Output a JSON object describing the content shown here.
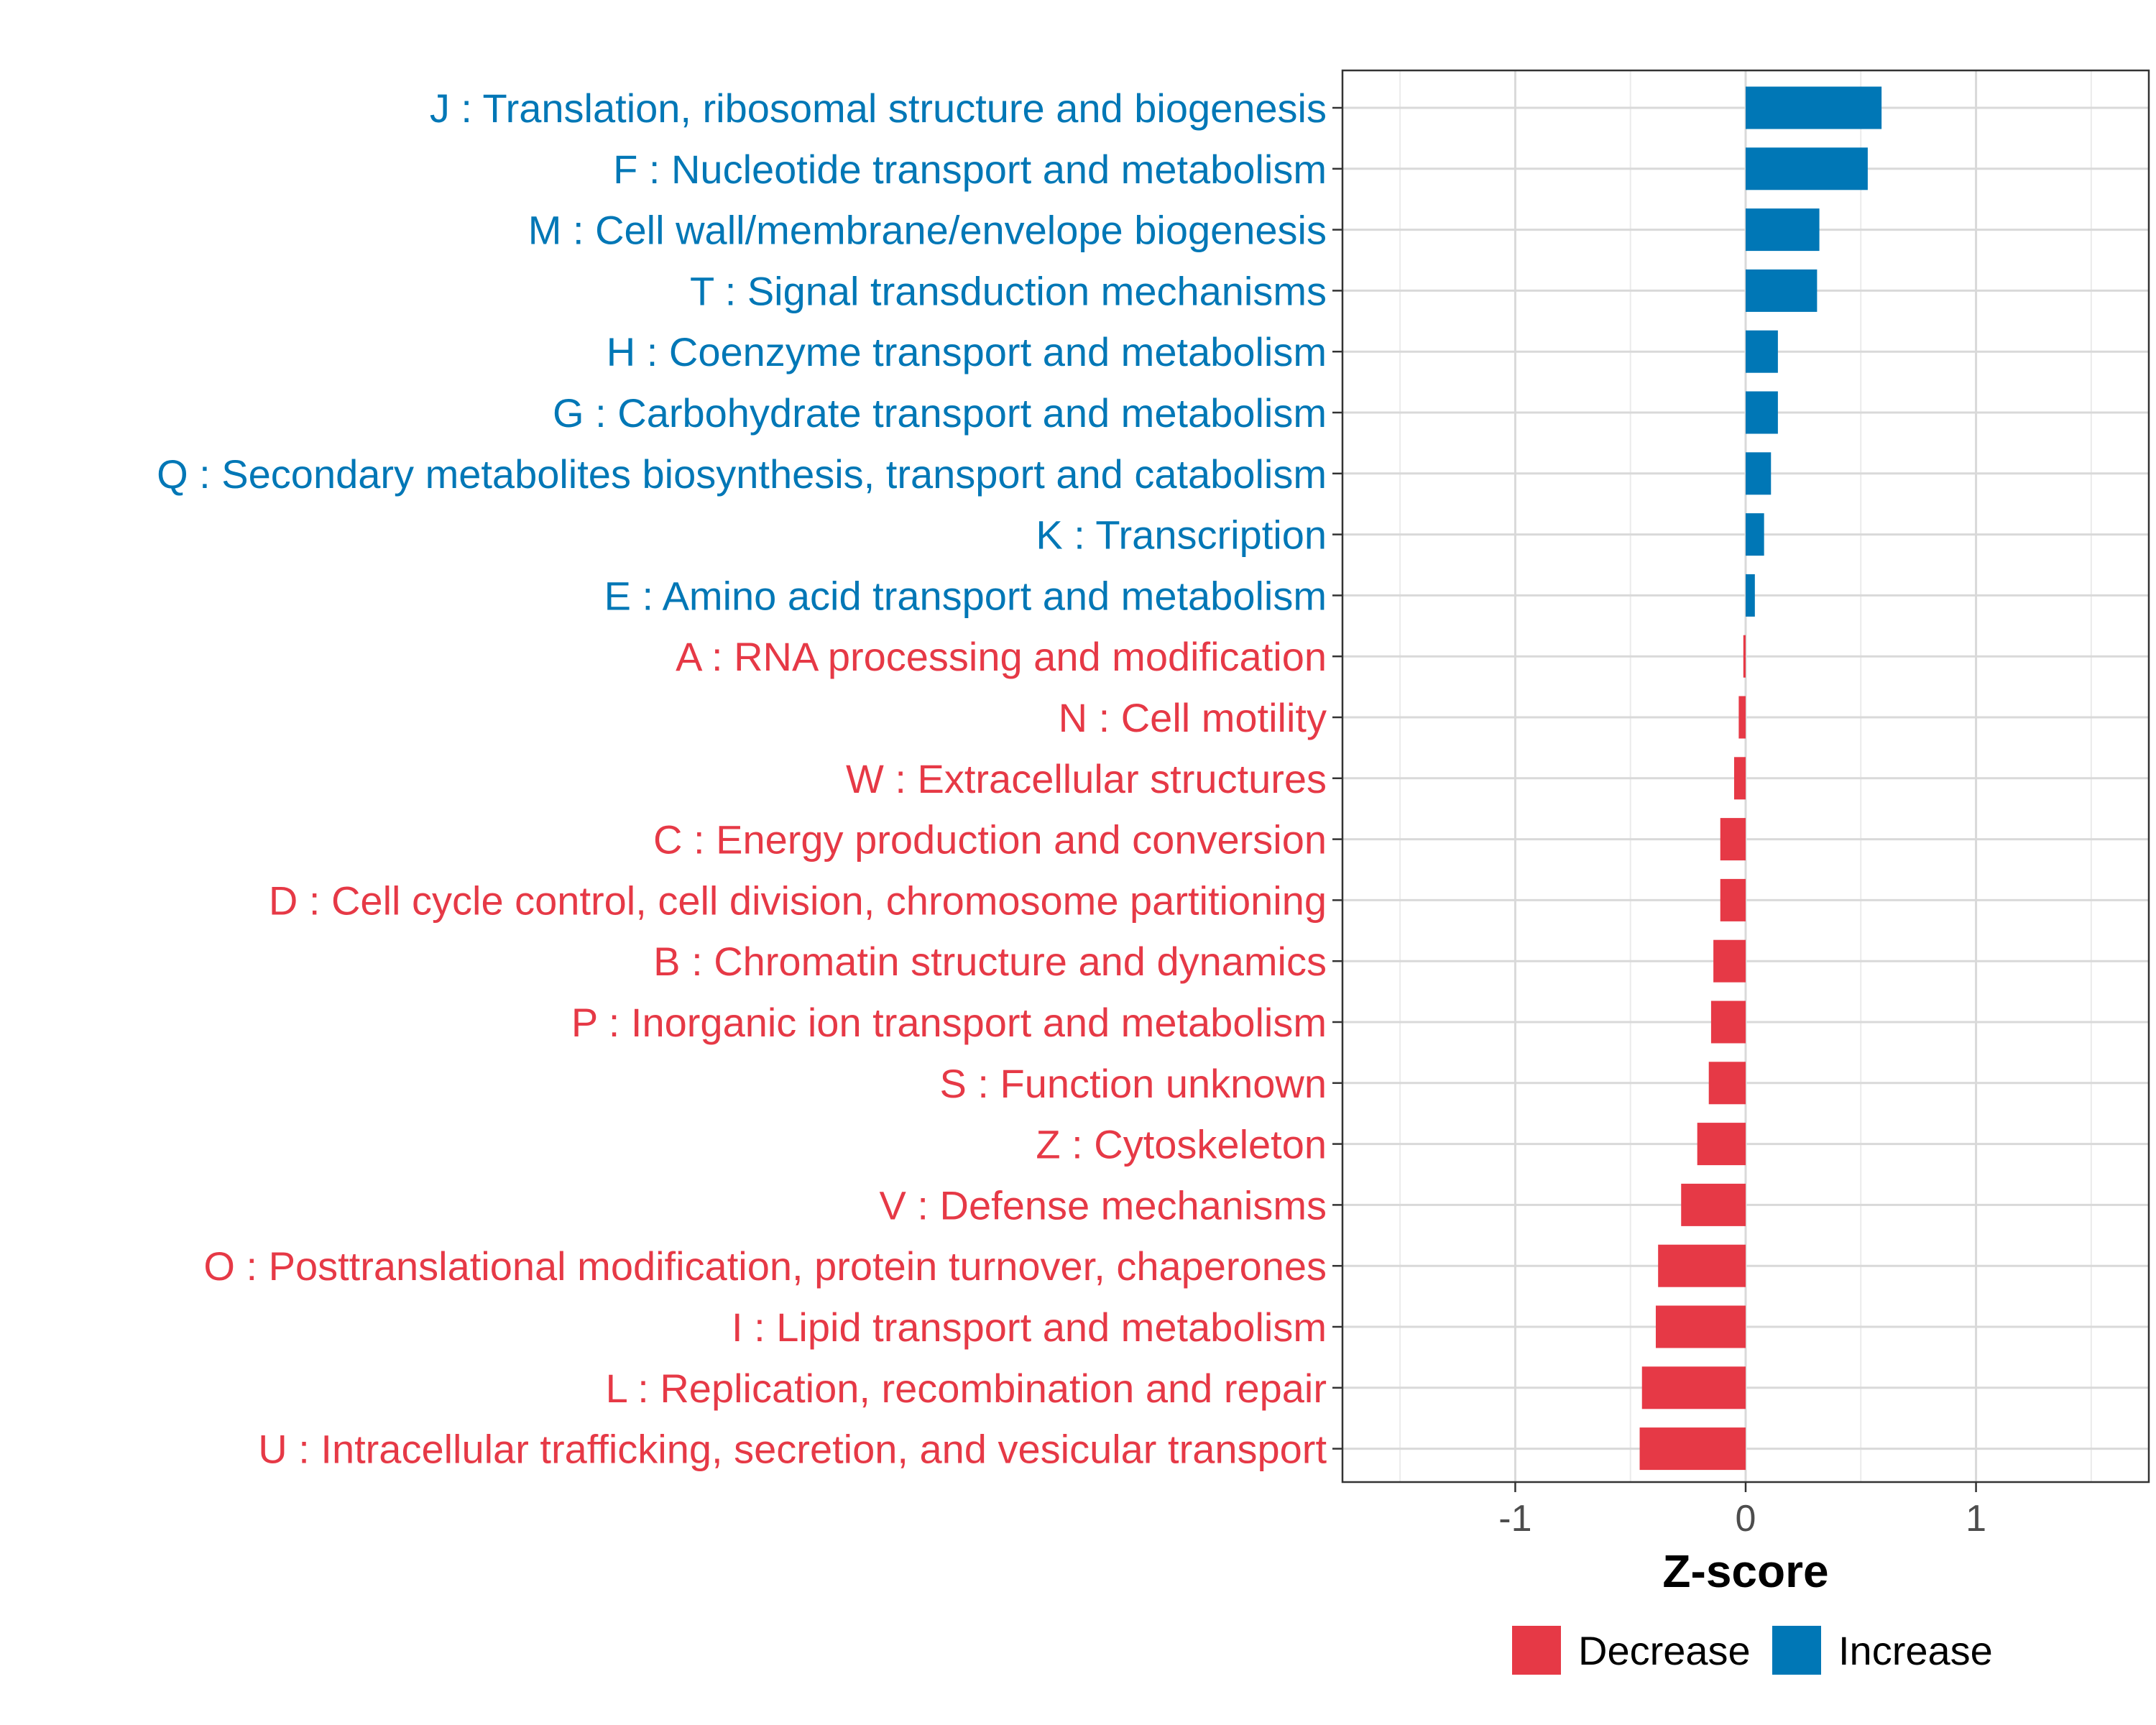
{
  "chart_data": {
    "type": "bar",
    "orientation": "horizontal",
    "title": "",
    "xlabel": "Z-score",
    "ylabel": "",
    "xlim": [
      -1.75,
      1.75
    ],
    "xticks": [
      -1,
      0,
      1
    ],
    "xtick_labels": [
      "-1",
      "0",
      "1"
    ],
    "grid": true,
    "legend_position": "bottom",
    "colors": {
      "Decrease": "#e63946",
      "Increase": "#0077b6"
    },
    "legend": [
      {
        "name": "Decrease",
        "color": "#e63946"
      },
      {
        "name": "Increase",
        "color": "#0077b6"
      }
    ],
    "categories": [
      "J : Translation, ribosomal structure and biogenesis",
      "F : Nucleotide transport and metabolism",
      "M : Cell wall/membrane/envelope biogenesis",
      "T : Signal transduction mechanisms",
      "H : Coenzyme transport and metabolism",
      "G : Carbohydrate transport and metabolism",
      "Q : Secondary metabolites biosynthesis, transport and catabolism",
      "K : Transcription",
      "E : Amino acid transport and metabolism",
      "A : RNA processing and modification",
      "N : Cell motility",
      "W : Extracellular structures",
      "C : Energy production and conversion",
      "D : Cell cycle control, cell division, chromosome partitioning",
      "B : Chromatin structure and dynamics",
      "P : Inorganic ion transport and metabolism",
      "S : Function unknown",
      "Z : Cytoskeleton",
      "V : Defense mechanisms",
      "O : Posttranslational modification, protein turnover, chaperones",
      "I : Lipid transport and metabolism",
      "L : Replication, recombination and repair",
      "U : Intracellular trafficking, secretion, and vesicular transport"
    ],
    "values": [
      0.59,
      0.53,
      0.32,
      0.31,
      0.14,
      0.14,
      0.11,
      0.08,
      0.04,
      -0.01,
      -0.03,
      -0.05,
      -0.11,
      -0.11,
      -0.14,
      -0.15,
      -0.16,
      -0.21,
      -0.28,
      -0.38,
      -0.39,
      -0.45,
      -0.46
    ],
    "groups": [
      "Increase",
      "Increase",
      "Increase",
      "Increase",
      "Increase",
      "Increase",
      "Increase",
      "Increase",
      "Increase",
      "Decrease",
      "Decrease",
      "Decrease",
      "Decrease",
      "Decrease",
      "Decrease",
      "Decrease",
      "Decrease",
      "Decrease",
      "Decrease",
      "Decrease",
      "Decrease",
      "Decrease",
      "Decrease"
    ]
  }
}
